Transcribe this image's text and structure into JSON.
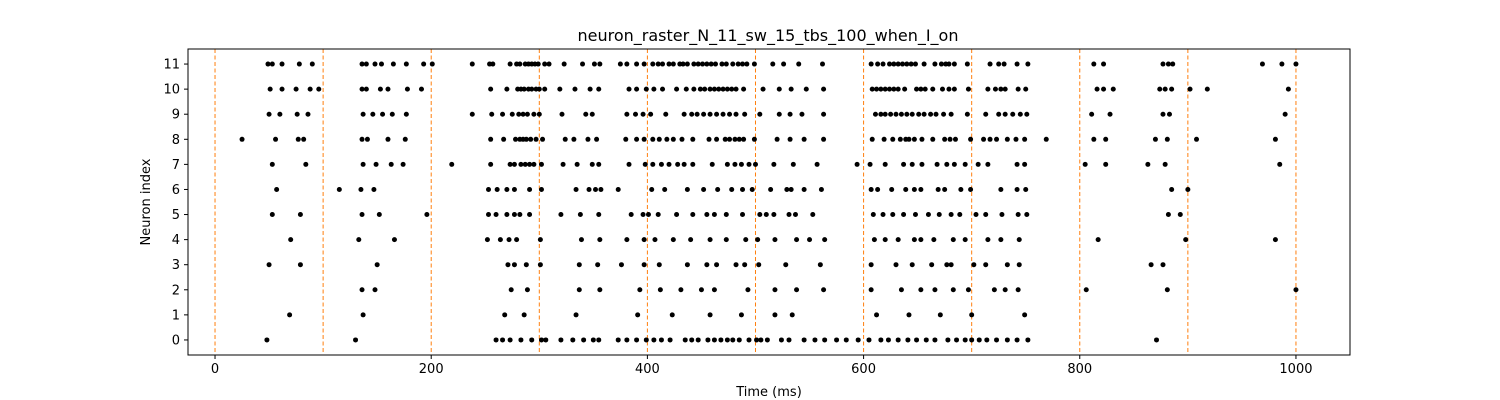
{
  "chart_data": {
    "type": "scatter",
    "title": "neuron_raster_N_11_sw_15_tbs_100_when_I_on",
    "xlabel": "Time (ms)",
    "ylabel": "Neuron index",
    "xlim": [
      -25,
      1050
    ],
    "ylim": [
      -0.6,
      11.6
    ],
    "x_ticks": [
      0,
      200,
      400,
      600,
      800,
      1000
    ],
    "y_ticks": [
      0,
      1,
      2,
      3,
      4,
      5,
      6,
      7,
      8,
      9,
      10,
      11
    ],
    "grid": false,
    "point_color": "#000000",
    "vlines": {
      "x": [
        0,
        100,
        200,
        300,
        400,
        500,
        600,
        700,
        800,
        900,
        1000
      ],
      "color": "#ff7f0e",
      "style": "dashed"
    },
    "series": [
      {
        "neuron": 11,
        "spikes": [
          49,
          53,
          62,
          78,
          90,
          136,
          140,
          148,
          154,
          165,
          177,
          193,
          201,
          238,
          254,
          257,
          273,
          279,
          282,
          287,
          290,
          293,
          296,
          299,
          305,
          309,
          323,
          340,
          351,
          356,
          375,
          381,
          390,
          397,
          405,
          410,
          414,
          420,
          424,
          430,
          433,
          437,
          443,
          447,
          451,
          455,
          459,
          463,
          469,
          473,
          479,
          484,
          488,
          492,
          499,
          516,
          526,
          540,
          562,
          607,
          613,
          618,
          624,
          628,
          632,
          636,
          640,
          644,
          648,
          656,
          666,
          672,
          676,
          679,
          684,
          696,
          717,
          725,
          730,
          742,
          752,
          813,
          822,
          877,
          882,
          886,
          969,
          987,
          1000
        ]
      },
      {
        "neuron": 10,
        "spikes": [
          51,
          62,
          75,
          88,
          96,
          136,
          140,
          153,
          160,
          178,
          191,
          255,
          270,
          280,
          283,
          286,
          290,
          293,
          297,
          300,
          305,
          319,
          333,
          347,
          355,
          383,
          390,
          399,
          406,
          414,
          427,
          436,
          443,
          449,
          453,
          458,
          462,
          466,
          470,
          474,
          478,
          482,
          489,
          507,
          522,
          533,
          547,
          563,
          608,
          612,
          616,
          620,
          624,
          628,
          632,
          638,
          649,
          653,
          657,
          664,
          673,
          679,
          684,
          697,
          715,
          722,
          727,
          731,
          743,
          750,
          816,
          822,
          831,
          874,
          879,
          885,
          902,
          918,
          993
        ]
      },
      {
        "neuron": 9,
        "spikes": [
          50,
          60,
          76,
          86,
          137,
          146,
          155,
          164,
          177,
          238,
          256,
          266,
          275,
          281,
          285,
          289,
          295,
          300,
          321,
          343,
          349,
          381,
          389,
          396,
          403,
          417,
          434,
          441,
          446,
          452,
          458,
          464,
          470,
          476,
          482,
          490,
          504,
          522,
          532,
          543,
          563,
          611,
          616,
          620,
          625,
          630,
          635,
          640,
          645,
          651,
          656,
          662,
          667,
          674,
          681,
          696,
          713,
          725,
          731,
          738,
          745,
          751,
          811,
          828,
          877,
          883,
          990
        ]
      },
      {
        "neuron": 8,
        "spikes": [
          25,
          56,
          77,
          82,
          136,
          141,
          160,
          176,
          255,
          267,
          278,
          282,
          285,
          288,
          292,
          297,
          303,
          324,
          332,
          345,
          353,
          380,
          390,
          397,
          405,
          411,
          418,
          424,
          432,
          442,
          457,
          464,
          472,
          476,
          481,
          485,
          489,
          499,
          520,
          532,
          545,
          563,
          608,
          619,
          627,
          634,
          639,
          642,
          647,
          654,
          664,
          675,
          680,
          685,
          699,
          711,
          717,
          723,
          733,
          741,
          749,
          769,
          813,
          824,
          870,
          881,
          908,
          981
        ]
      },
      {
        "neuron": 7,
        "spikes": [
          53,
          84,
          137,
          149,
          163,
          174,
          219,
          255,
          273,
          277,
          283,
          287,
          291,
          295,
          302,
          322,
          335,
          349,
          355,
          383,
          398,
          405,
          413,
          420,
          428,
          434,
          442,
          460,
          474,
          481,
          487,
          494,
          500,
          517,
          535,
          557,
          594,
          606,
          620,
          637,
          645,
          654,
          668,
          677,
          684,
          694,
          706,
          715,
          742,
          749,
          805,
          824,
          863,
          879,
          985
        ]
      },
      {
        "neuron": 6,
        "spikes": [
          57,
          115,
          135,
          147,
          253,
          261,
          270,
          277,
          291,
          302,
          334,
          346,
          352,
          357,
          373,
          404,
          416,
          437,
          452,
          465,
          478,
          488,
          497,
          514,
          529,
          533,
          545,
          561,
          607,
          613,
          626,
          639,
          647,
          653,
          669,
          675,
          690,
          699,
          727,
          742,
          750,
          885,
          900
        ]
      },
      {
        "neuron": 5,
        "spikes": [
          53,
          79,
          136,
          152,
          196,
          253,
          260,
          270,
          277,
          282,
          291,
          320,
          338,
          355,
          385,
          396,
          401,
          410,
          427,
          442,
          455,
          462,
          473,
          488,
          504,
          510,
          517,
          531,
          537,
          553,
          609,
          618,
          627,
          637,
          648,
          660,
          670,
          681,
          689,
          704,
          713,
          728,
          743,
          751,
          882,
          893
        ]
      },
      {
        "neuron": 4,
        "spikes": [
          70,
          133,
          166,
          252,
          264,
          272,
          279,
          301,
          339,
          356,
          381,
          397,
          407,
          424,
          440,
          458,
          473,
          491,
          502,
          518,
          538,
          550,
          564,
          610,
          620,
          632,
          647,
          653,
          665,
          683,
          694,
          715,
          727,
          744,
          817,
          898,
          981
        ]
      },
      {
        "neuron": 3,
        "spikes": [
          50,
          79,
          150,
          271,
          277,
          288,
          301,
          337,
          354,
          376,
          397,
          411,
          437,
          455,
          464,
          482,
          490,
          503,
          528,
          560,
          607,
          630,
          645,
          663,
          677,
          681,
          702,
          713,
          733,
          744,
          866,
          877
        ]
      },
      {
        "neuron": 2,
        "spikes": [
          136,
          148,
          274,
          289,
          337,
          356,
          393,
          412,
          431,
          450,
          462,
          493,
          518,
          538,
          563,
          607,
          635,
          653,
          666,
          683,
          697,
          721,
          731,
          743,
          806,
          881,
          1000
        ]
      },
      {
        "neuron": 1,
        "spikes": [
          69,
          137,
          268,
          286,
          334,
          391,
          423,
          458,
          487,
          518,
          534,
          612,
          642,
          671,
          700,
          749
        ]
      },
      {
        "neuron": 0,
        "spikes": [
          48,
          130,
          260,
          266,
          273,
          283,
          293,
          302,
          306,
          320,
          331,
          341,
          350,
          355,
          373,
          381,
          390,
          399,
          406,
          413,
          421,
          435,
          441,
          447,
          456,
          462,
          468,
          474,
          479,
          485,
          494,
          501,
          505,
          511,
          524,
          531,
          545,
          555,
          564,
          575,
          584,
          595,
          605,
          616,
          623,
          632,
          641,
          649,
          658,
          666,
          678,
          686,
          694,
          700,
          707,
          714,
          723,
          733,
          742,
          752,
          871
        ]
      }
    ]
  }
}
